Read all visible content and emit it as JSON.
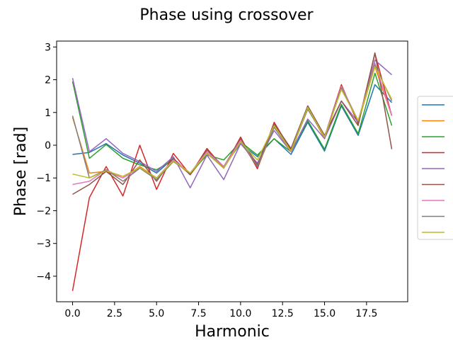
{
  "chart_data": {
    "type": "line",
    "title": "Phase using crossover",
    "xlabel": "Harmonic",
    "ylabel": "Phase [rad]",
    "xlim": [
      -0.95,
      19.95
    ],
    "ylim": [
      -4.78,
      3.18
    ],
    "xticks": [
      0.0,
      2.5,
      5.0,
      7.5,
      10.0,
      12.5,
      15.0,
      17.5
    ],
    "xtick_labels": [
      "0.0",
      "2.5",
      "5.0",
      "7.5",
      "10.0",
      "12.5",
      "15.0",
      "17.5"
    ],
    "yticks": [
      -4,
      -3,
      -2,
      -1,
      0,
      1,
      2,
      3
    ],
    "ytick_labels": [
      "−4",
      "−3",
      "−2",
      "−1",
      "0",
      "1",
      "2",
      "3"
    ],
    "legend_position": "right",
    "x": [
      0,
      1,
      2,
      3,
      4,
      5,
      6,
      7,
      8,
      9,
      10,
      11,
      12,
      13,
      14,
      15,
      16,
      17,
      18,
      19
    ],
    "series": [
      {
        "color": "#1f77b4",
        "values": [
          -0.28,
          -0.22,
          0.05,
          -0.3,
          -0.55,
          -0.85,
          -0.4,
          -0.9,
          -0.25,
          -0.65,
          0.05,
          -0.35,
          0.2,
          -0.28,
          0.7,
          -0.18,
          1.2,
          0.3,
          1.85,
          1.3
        ]
      },
      {
        "color": "#ff7f0e",
        "values": [
          0.85,
          -0.85,
          -0.8,
          -1.0,
          -0.65,
          -1.0,
          -0.45,
          -0.9,
          -0.25,
          -0.7,
          0.15,
          -0.7,
          0.55,
          -0.15,
          1.15,
          0.2,
          1.75,
          0.7,
          2.4,
          0.9
        ]
      },
      {
        "color": "#2ca02c",
        "values": [
          1.95,
          -0.4,
          0.02,
          -0.4,
          -0.6,
          -0.75,
          -0.45,
          -0.85,
          -0.3,
          -0.45,
          0.1,
          -0.3,
          0.2,
          -0.2,
          0.75,
          -0.12,
          1.25,
          0.35,
          2.2,
          0.6
        ]
      },
      {
        "color": "#d62728",
        "values": [
          -4.45,
          -1.6,
          -0.65,
          -1.55,
          0.0,
          -1.35,
          -0.25,
          -0.9,
          -0.1,
          -0.7,
          0.25,
          -0.72,
          0.7,
          -0.15,
          1.2,
          0.25,
          1.85,
          0.65,
          2.8,
          0.9
        ]
      },
      {
        "color": "#9467bd",
        "values": [
          2.05,
          -0.2,
          0.2,
          -0.25,
          -0.5,
          -0.8,
          -0.35,
          -1.3,
          -0.3,
          -1.05,
          0.05,
          -0.55,
          0.45,
          -0.2,
          0.8,
          0.2,
          1.35,
          0.7,
          2.6,
          2.15
        ]
      },
      {
        "color": "#8c564b",
        "values": [
          -1.5,
          -1.2,
          -0.8,
          -1.2,
          -0.45,
          -1.1,
          -0.4,
          -0.9,
          -0.15,
          -0.65,
          0.2,
          -0.6,
          0.65,
          -0.1,
          1.2,
          0.3,
          1.35,
          0.6,
          2.82,
          -0.12
        ]
      },
      {
        "color": "#e377c2",
        "values": [
          -1.2,
          -1.1,
          -0.75,
          -1.0,
          -0.7,
          -1.0,
          -0.45,
          -0.85,
          -0.2,
          -0.65,
          0.15,
          -0.65,
          0.55,
          -0.2,
          1.15,
          0.25,
          1.8,
          0.75,
          2.5,
          0.9
        ]
      },
      {
        "color": "#7f7f7f",
        "values": [
          0.9,
          -1.0,
          -0.75,
          -1.1,
          -0.7,
          -1.05,
          -0.5,
          -0.85,
          -0.25,
          -0.7,
          0.1,
          -0.65,
          0.55,
          -0.18,
          1.1,
          0.25,
          1.75,
          0.75,
          2.45,
          1.35
        ]
      },
      {
        "color": "#bcbd22",
        "values": [
          -0.88,
          -1.0,
          -0.78,
          -0.95,
          -0.68,
          -1.0,
          -0.48,
          -0.85,
          -0.25,
          -0.7,
          0.1,
          -0.45,
          0.6,
          -0.18,
          1.15,
          0.25,
          1.7,
          0.75,
          2.4,
          1.4
        ]
      }
    ]
  }
}
